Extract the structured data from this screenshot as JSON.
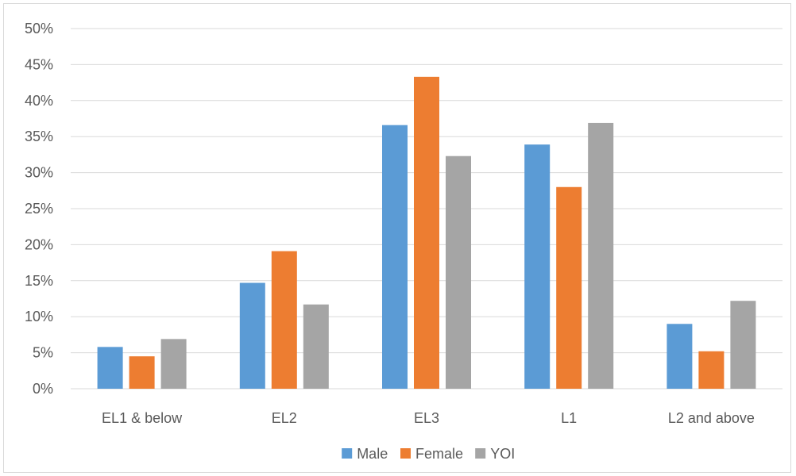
{
  "chart_data": {
    "type": "bar",
    "title": "",
    "xlabel": "",
    "ylabel": "",
    "categories": [
      "EL1 & below",
      "EL2",
      "EL3",
      "L1",
      "L2 and above"
    ],
    "series": [
      {
        "name": "Male",
        "color": "#5b9bd5",
        "values": [
          5.8,
          14.7,
          36.6,
          33.9,
          9.0
        ]
      },
      {
        "name": "Female",
        "color": "#ed7d31",
        "values": [
          4.5,
          19.1,
          43.3,
          28.0,
          5.2
        ]
      },
      {
        "name": "YOI",
        "color": "#a5a5a5",
        "values": [
          6.9,
          11.7,
          32.3,
          36.9,
          12.2
        ]
      }
    ],
    "ylim": [
      0,
      50
    ],
    "ytick_step": 5,
    "ytick_labels": [
      "0%",
      "5%",
      "10%",
      "15%",
      "20%",
      "25%",
      "30%",
      "35%",
      "40%",
      "45%",
      "50%"
    ],
    "grid": true,
    "gridline_color": "#d9d9d9",
    "legend_position": "bottom"
  }
}
